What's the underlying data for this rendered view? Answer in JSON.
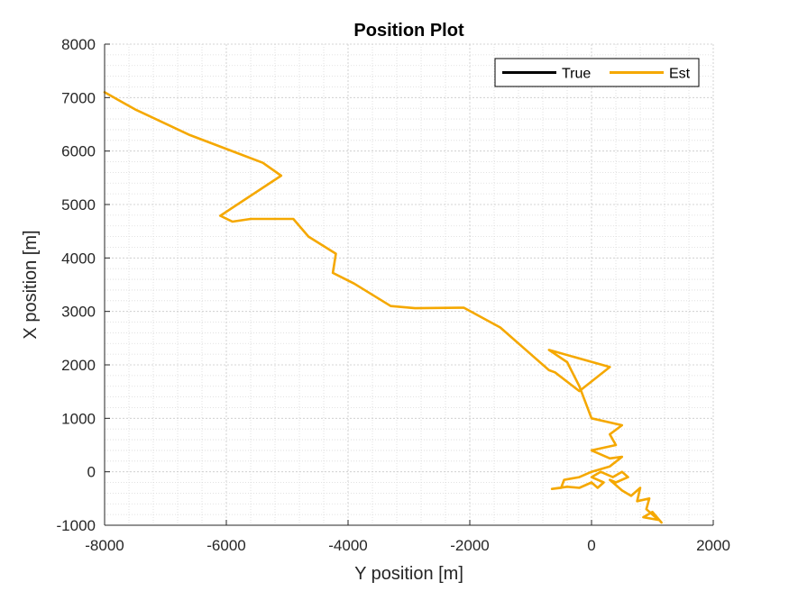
{
  "chart_data": {
    "type": "line",
    "title": "Position Plot",
    "xlabel": "Y position [m]",
    "ylabel": "X position [m]",
    "xlim": [
      -8000,
      2000
    ],
    "ylim": [
      -1000,
      8000
    ],
    "xticks": [
      -8000,
      -6000,
      -4000,
      -2000,
      0,
      2000
    ],
    "yticks": [
      -1000,
      0,
      1000,
      2000,
      3000,
      4000,
      5000,
      6000,
      7000,
      8000
    ],
    "xtick_labels": [
      "-8000",
      "-6000",
      "-4000",
      "-2000",
      "0",
      "2000"
    ],
    "ytick_labels": [
      "-1000",
      "0",
      "1000",
      "2000",
      "3000",
      "4000",
      "5000",
      "6000",
      "7000",
      "8000"
    ],
    "grid": true,
    "minor_grid": true,
    "legend_position": "top-right",
    "series": [
      {
        "name": "True",
        "color": "#000000",
        "points": []
      },
      {
        "name": "Est",
        "color": "#f5a800",
        "points": [
          [
            -8000,
            7100
          ],
          [
            -7500,
            6780
          ],
          [
            -6600,
            6300
          ],
          [
            -5400,
            5780
          ],
          [
            -5100,
            5540
          ],
          [
            -6100,
            4790
          ],
          [
            -5900,
            4680
          ],
          [
            -5600,
            4730
          ],
          [
            -4900,
            4730
          ],
          [
            -4650,
            4400
          ],
          [
            -4200,
            4080
          ],
          [
            -4250,
            3720
          ],
          [
            -3900,
            3520
          ],
          [
            -3300,
            3100
          ],
          [
            -2900,
            3060
          ],
          [
            -2100,
            3070
          ],
          [
            -1500,
            2700
          ],
          [
            -1100,
            2300
          ],
          [
            -700,
            1900
          ],
          [
            -600,
            1860
          ],
          [
            -200,
            1510
          ],
          [
            300,
            1960
          ],
          [
            -700,
            2280
          ],
          [
            -400,
            2050
          ],
          [
            -200,
            1600
          ],
          [
            0,
            1000
          ],
          [
            500,
            870
          ],
          [
            300,
            700
          ],
          [
            400,
            500
          ],
          [
            0,
            400
          ],
          [
            300,
            250
          ],
          [
            500,
            280
          ],
          [
            300,
            100
          ],
          [
            0,
            0
          ],
          [
            -200,
            -100
          ],
          [
            -450,
            -150
          ],
          [
            -500,
            -300
          ],
          [
            -650,
            -320
          ],
          [
            -400,
            -280
          ],
          [
            -200,
            -300
          ],
          [
            0,
            -200
          ],
          [
            100,
            -300
          ],
          [
            200,
            -200
          ],
          [
            0,
            -100
          ],
          [
            150,
            0
          ],
          [
            350,
            -100
          ],
          [
            500,
            0
          ],
          [
            600,
            -100
          ],
          [
            400,
            -200
          ],
          [
            300,
            -150
          ],
          [
            500,
            -350
          ],
          [
            650,
            -450
          ],
          [
            800,
            -300
          ],
          [
            750,
            -550
          ],
          [
            950,
            -500
          ],
          [
            900,
            -700
          ],
          [
            1100,
            -900
          ],
          [
            850,
            -850
          ],
          [
            1000,
            -750
          ],
          [
            1150,
            -950
          ]
        ]
      }
    ]
  }
}
